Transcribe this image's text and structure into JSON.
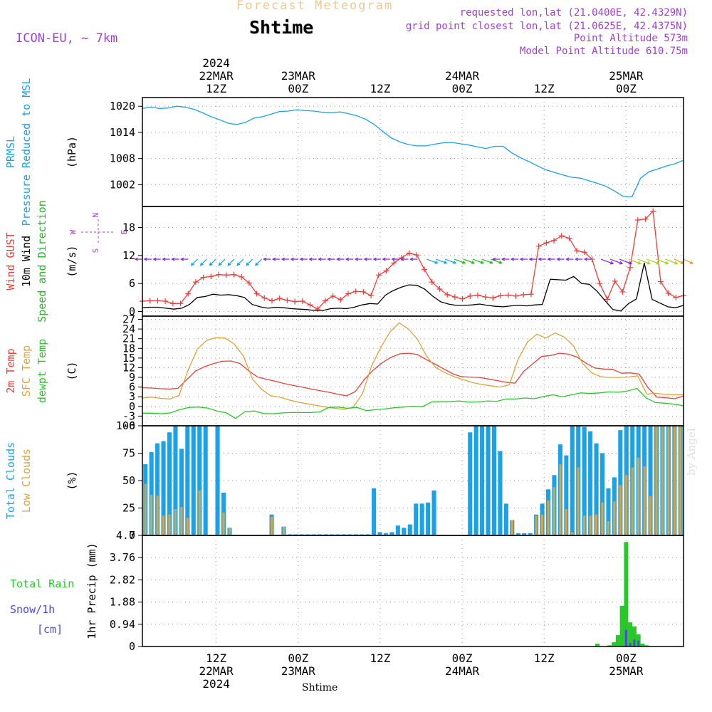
{
  "header": {
    "title_faint": "Forecast Meteogram",
    "title": "Shtime",
    "model": "ICON-EU, ~ 7km",
    "requested": "requested lon,lat (21.0400E, 42.4329N)",
    "gridpoint": "grid point closest lon,lat (21.0625E, 42.4375N)",
    "point_alt": "Point Altitude 573m",
    "model_alt": "Model Point Altitude 610.75m",
    "watermark": "by Angel",
    "footer_name": "Shtime"
  },
  "colors": {
    "pressure": "#1ba1e6",
    "gust": "#e8403a",
    "wind": "#000000",
    "arrows_green": "#28b828",
    "temp2m": "#e8403a",
    "sfc": "#dea33a",
    "dewpt": "#28c828",
    "total_clouds": "#1ba1e6",
    "low_clouds": "#d3a64a",
    "rain": "#28c828",
    "snow": "#4a4ae0",
    "label_purple": "#a040d0",
    "title_faint": "#f0c890"
  },
  "chart_data": {
    "x_range": [
      0,
      66
    ],
    "x_ticks_top": [
      {
        "x": 9,
        "lines": [
          "2024",
          "22MAR",
          "12Z"
        ]
      },
      {
        "x": 19,
        "lines": [
          "23MAR",
          "00Z"
        ]
      },
      {
        "x": 29,
        "lines": [
          "12Z"
        ]
      },
      {
        "x": 39,
        "lines": [
          "24MAR",
          "00Z"
        ]
      },
      {
        "x": 49,
        "lines": [
          "12Z"
        ]
      },
      {
        "x": 59,
        "lines": [
          "25MAR",
          "00Z"
        ]
      }
    ],
    "x_ticks_bottom": [
      {
        "x": 9,
        "lines": [
          "12Z",
          "22MAR",
          "2024"
        ]
      },
      {
        "x": 19,
        "lines": [
          "00Z",
          "23MAR"
        ]
      },
      {
        "x": 29,
        "lines": [
          "12Z"
        ]
      },
      {
        "x": 39,
        "lines": [
          "00Z",
          "24MAR"
        ]
      },
      {
        "x": 49,
        "lines": [
          "12Z"
        ]
      },
      {
        "x": 59,
        "lines": [
          "00Z",
          "25MAR"
        ]
      }
    ],
    "panels": [
      {
        "id": "pressure",
        "type": "line",
        "ylim": [
          997,
          1022
        ],
        "yticks": [
          1002,
          1008,
          1014,
          1020
        ],
        "tick_labels": [
          "1002",
          "1008",
          "1014",
          "1020"
        ],
        "ylabel": [
          "(hPa)"
        ],
        "side_labels": [
          {
            "text": "PRMSL",
            "color": "#1ba1e6"
          },
          {
            "text": "Pressure Reduced to MSL",
            "color": "#1ba1e6"
          }
        ],
        "series": [
          {
            "name": "PRMSL",
            "color": "#1ba1e6",
            "x_start": 0,
            "step": 1,
            "values": [
              1019.5,
              1019.8,
              1019.5,
              1019.6,
              1020.0,
              1019.8,
              1019.3,
              1018.5,
              1017.6,
              1016.9,
              1016.1,
              1015.8,
              1016.3,
              1017.3,
              1017.6,
              1018.2,
              1018.8,
              1018.9,
              1019.2,
              1019.0,
              1018.9,
              1018.6,
              1018.5,
              1018.7,
              1018.3,
              1017.8,
              1017.0,
              1015.8,
              1014.2,
              1012.7,
              1011.8,
              1011.2,
              1010.9,
              1010.9,
              1011.3,
              1011.6,
              1011.7,
              1011.4,
              1011.1,
              1010.7,
              1010.3,
              1010.8,
              1010.8,
              1009.3,
              1008.2,
              1007.3,
              1006.3,
              1005.4,
              1004.8,
              1004.2,
              1003.7,
              1003.5,
              1002.9,
              1002.3,
              1001.6,
              1000.5,
              999.3,
              999.2,
              1003.5,
              1005.0,
              1005.6,
              1006.3,
              1006.8,
              1007.6
            ]
          }
        ]
      },
      {
        "id": "wind",
        "type": "line",
        "ylim": [
          -1,
          22.5
        ],
        "yticks": [
          0,
          6,
          12,
          18
        ],
        "tick_labels": [
          "0",
          "6",
          "12",
          "18"
        ],
        "ylabel": [
          "(m/s)"
        ],
        "side_labels": [
          {
            "text": "Wind GUST",
            "color": "#e8403a"
          },
          {
            "text": "10m Wind",
            "color": "#000000"
          },
          {
            "text": "Speed and Direction",
            "color": "#28b828"
          }
        ],
        "compass": {
          "n": "N",
          "s": "S",
          "w": "W",
          "e": "E"
        },
        "series": [
          {
            "name": "Wind GUST",
            "color": "#e8403a",
            "marker": "plus",
            "x_start": 0,
            "step": 1,
            "values": [
              2.2,
              2.3,
              2.3,
              2.2,
              1.7,
              1.7,
              3.8,
              6.3,
              7.3,
              7.5,
              7.9,
              7.8,
              7.9,
              7.4,
              6.1,
              3.8,
              2.9,
              2.3,
              2.8,
              2.4,
              2.1,
              2.2,
              1.4,
              0.5,
              2.3,
              3.3,
              2.5,
              3.8,
              4.3,
              4.2,
              3.4,
              7.8,
              8.7,
              10.4,
              11.5,
              12.5,
              12.1,
              9.0,
              6.3,
              4.8,
              3.6,
              3.1,
              2.7,
              3.3,
              3.5,
              3.1,
              2.9,
              3.4,
              3.5,
              3.3,
              3.6,
              3.7,
              14.0,
              14.7,
              15.2,
              16.2,
              15.7,
              13.0,
              12.7,
              11.2,
              6.0,
              2.6,
              6.5,
              4.2,
              9.4,
              19.6,
              19.8,
              21.5,
              6.4,
              3.9,
              3.0,
              3.4
            ]
          },
          {
            "name": "10m Wind",
            "color": "#000000",
            "x_start": 0,
            "step": 1,
            "values": [
              0.8,
              0.9,
              0.9,
              0.7,
              0.5,
              0.7,
              1.5,
              3.0,
              3.2,
              3.7,
              3.5,
              3.6,
              3.4,
              3.0,
              1.5,
              1.0,
              0.7,
              0.9,
              0.8,
              0.6,
              0.5,
              0.4,
              0.2,
              0.2,
              0.6,
              0.7,
              0.6,
              0.9,
              1.4,
              1.7,
              1.6,
              3.5,
              4.5,
              5.2,
              5.7,
              5.6,
              4.8,
              3.3,
              2.1,
              1.6,
              1.3,
              1.3,
              1.4,
              1.6,
              1.3,
              1.1,
              1.0,
              1.2,
              1.3,
              1.2,
              1.4,
              1.5,
              6.9,
              6.8,
              6.7,
              7.5,
              6.0,
              5.8,
              4.3,
              2.3,
              0.4,
              0.1,
              1.7,
              2.7,
              10.4,
              2.6,
              1.8,
              1.0,
              0.8,
              1.3
            ]
          }
        ],
        "arrow_level": 11.2
      },
      {
        "id": "temp",
        "type": "line",
        "ylim": [
          -6,
          28
        ],
        "yticks": [
          -6,
          -3,
          0,
          3,
          6,
          9,
          12,
          15,
          18,
          21,
          24,
          27
        ],
        "tick_labels": [
          "-6",
          "-3",
          "0",
          "3",
          "6",
          "9",
          "12",
          "15",
          "18",
          "21",
          "24",
          "27"
        ],
        "ylabel": [
          "(C)"
        ],
        "side_labels": [
          {
            "text": "2m Temp",
            "color": "#e8403a"
          },
          {
            "text": "SFC Temp",
            "color": "#dea33a"
          },
          {
            "text": "dewpt Temp",
            "color": "#28c828"
          }
        ],
        "series": [
          {
            "name": "2m Temp",
            "color": "#e8403a",
            "x_start": 0,
            "step": 1,
            "values": [
              5.8,
              5.7,
              5.5,
              5.4,
              5.6,
              8.3,
              11.0,
              12.3,
              13.3,
              14.0,
              14.1,
              13.3,
              11.0,
              9.1,
              8.4,
              7.8,
              7.1,
              6.5,
              6.0,
              5.4,
              4.9,
              4.4,
              3.8,
              3.3,
              4.6,
              8.3,
              11.2,
              13.5,
              15.2,
              16.3,
              16.5,
              16.1,
              14.5,
              13.1,
              11.6,
              10.1,
              9.2,
              9.1,
              9.0,
              8.5,
              8.0,
              7.5,
              7.2,
              10.9,
              13.2,
              15.5,
              15.8,
              16.5,
              16.2,
              15.3,
              13.4,
              11.9,
              11.6,
              11.5,
              10.3,
              10.4,
              10.0,
              5.8,
              2.9,
              2.7,
              2.4,
              3.2
            ]
          },
          {
            "name": "SFC Temp",
            "color": "#dea33a",
            "x_start": 0,
            "step": 1,
            "values": [
              2.6,
              2.9,
              2.5,
              2.3,
              3.4,
              11.4,
              17.8,
              20.5,
              21.3,
              21.2,
              19.4,
              15.7,
              8.5,
              5.3,
              3.3,
              2.9,
              2.0,
              1.3,
              0.8,
              0.3,
              -0.2,
              -0.6,
              -0.9,
              -0.2,
              4.0,
              12.6,
              18.3,
              23.1,
              25.9,
              24.0,
              20.8,
              15.5,
              12.0,
              10.5,
              9.2,
              8.3,
              7.4,
              6.8,
              6.4,
              6.0,
              6.7,
              14.8,
              20.0,
              22.4,
              21.2,
              22.8,
              21.5,
              18.8,
              13.3,
              10.4,
              9.2,
              9.0,
              9.0,
              9.1,
              9.5,
              3.8,
              4.1,
              3.7,
              3.6,
              3.6
            ]
          },
          {
            "name": "dewpt Temp",
            "color": "#28c828",
            "x_start": 0,
            "step": 1,
            "values": [
              -2.1,
              -2.1,
              -2.3,
              -2.0,
              -1.0,
              -0.3,
              -0.2,
              -0.5,
              -1.4,
              -2.0,
              -3.7,
              -1.6,
              -1.4,
              -2.2,
              -2.3,
              -2.0,
              -1.9,
              -1.9,
              -1.9,
              -1.7,
              -0.3,
              -0.2,
              -0.6,
              -0.3,
              -1.3,
              -1.0,
              -0.8,
              -0.4,
              -0.2,
              0.0,
              -0.1,
              1.4,
              1.5,
              1.5,
              1.7,
              1.3,
              1.4,
              1.7,
              1.6,
              2.3,
              2.3,
              2.6,
              2.4,
              3.1,
              3.6,
              3.0,
              3.6,
              4.2,
              4.0,
              4.2,
              4.5,
              4.4,
              4.8,
              5.6,
              2.6,
              1.2,
              1.0,
              0.7,
              0.2
            ]
          }
        ]
      },
      {
        "id": "clouds",
        "type": "bar",
        "ylim": [
          0,
          100
        ],
        "yticks": [
          0,
          25,
          50,
          75,
          100
        ],
        "tick_labels": [
          "0",
          "25",
          "50",
          "75",
          "100"
        ],
        "ylabel": [
          "(%)"
        ],
        "side_labels": [
          {
            "text": "Total Clouds",
            "color": "#1ba1e6"
          },
          {
            "text": "Low Clouds",
            "color": "#d3a64a"
          }
        ],
        "series": [
          {
            "name": "Total Clouds",
            "color": "#1ba1e6",
            "x_start": 0,
            "step": 1,
            "values": [
              65,
              76,
              84,
              86,
              94,
              100,
              79,
              100,
              100,
              100,
              100,
              0,
              100,
              39,
              7,
              0,
              0,
              0,
              0,
              0,
              0,
              19,
              0,
              8,
              1,
              1,
              1,
              1,
              1,
              1,
              1,
              1,
              1,
              1,
              1,
              1,
              1,
              1,
              43,
              3,
              2,
              3,
              9,
              7,
              10,
              29,
              29,
              30,
              41,
              0,
              0,
              0,
              0,
              0,
              94,
              100,
              100,
              100,
              100,
              77,
              29,
              14,
              2,
              2,
              2,
              19,
              29,
              42,
              55,
              83,
              73,
              100,
              100,
              99,
              95,
              84,
              75,
              43,
              53,
              96,
              100,
              100,
              100,
              100,
              100,
              100,
              100,
              100,
              100,
              100
            ]
          },
          {
            "name": "Low Clouds",
            "color": "#d3a64a",
            "x_start": 0,
            "step": 1,
            "values": [
              47,
              37,
              36,
              18,
              19,
              24,
              26,
              16,
              0,
              41,
              0,
              0,
              0,
              21,
              7,
              0,
              0,
              0,
              0,
              0,
              0,
              17,
              0,
              8,
              0,
              0,
              0,
              0,
              0,
              0,
              0,
              0,
              0,
              0,
              0,
              0,
              0,
              0,
              0,
              0,
              0,
              0,
              0,
              0,
              0,
              0,
              0,
              0,
              0,
              0,
              0,
              0,
              0,
              0,
              0,
              0,
              0,
              0,
              0,
              0,
              0,
              14,
              0,
              0,
              0,
              18,
              19,
              32,
              44,
              65,
              24,
              3,
              62,
              18,
              18,
              19,
              30,
              13,
              31,
              46,
              55,
              62,
              71,
              63,
              36,
              100,
              100,
              100,
              100,
              100
            ]
          }
        ]
      },
      {
        "id": "precip",
        "type": "bar",
        "ylim": [
          0,
          4.7
        ],
        "yticks": [
          0,
          0.94,
          1.88,
          2.82,
          3.76,
          4.7
        ],
        "tick_labels": [
          "0",
          "0.94",
          "1.88",
          "2.82",
          "3.76",
          "4.7"
        ],
        "ylabel": [
          "1hr Precip (mm)"
        ],
        "side_labels": [
          {
            "text": "Total Rain",
            "color": "#28c828"
          },
          {
            "text": "Snow/1h",
            "color": "#4a4ae0"
          },
          {
            "text": "[cm]",
            "color": "#4a4ae0"
          }
        ],
        "series": [
          {
            "name": "Total Rain",
            "color": "#28c828",
            "x": [
              55.5,
              57.0,
              57.5,
              58.0,
              58.5,
              59.0,
              59.5,
              60.0,
              60.5,
              61.0,
              61.5,
              62.0
            ],
            "values": [
              0.12,
              0.05,
              0.18,
              0.48,
              1.72,
              4.42,
              1.02,
              0.85,
              0.52,
              0.12,
              0.05,
              0.0
            ]
          },
          {
            "name": "Snow/1h",
            "color": "#4a4ae0",
            "x": [
              59.0,
              59.5,
              60.0,
              60.5
            ],
            "values": [
              0.7,
              0.15,
              0.3,
              0.25
            ]
          }
        ]
      }
    ]
  }
}
